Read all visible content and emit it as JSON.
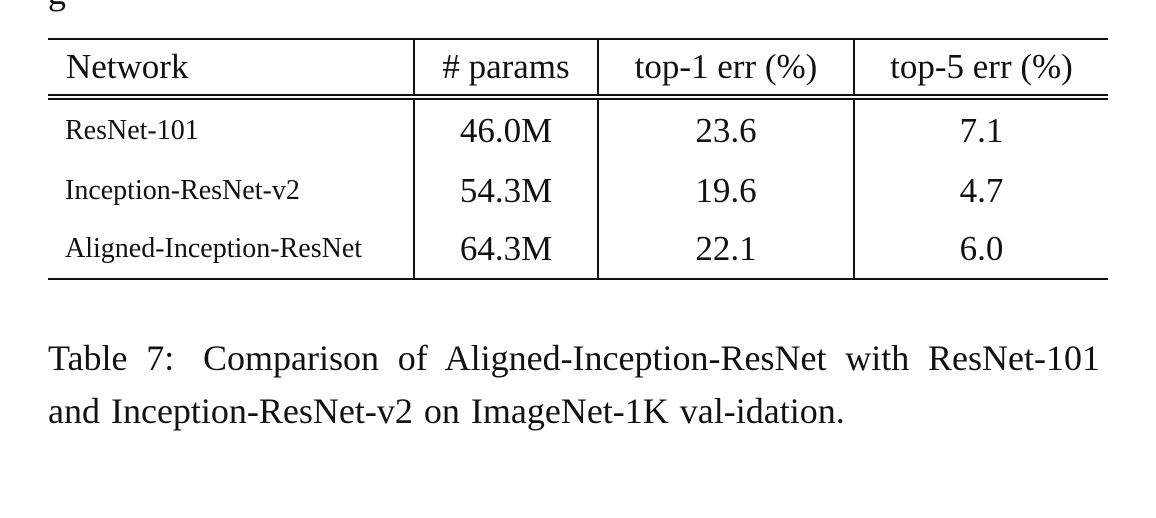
{
  "cutoff_text": "g",
  "table": {
    "headers": [
      "Network",
      "# params",
      "top-1 err (%)",
      "top-5 err (%)"
    ],
    "rows": [
      [
        "ResNet-101",
        "46.0M",
        "23.6",
        "7.1"
      ],
      [
        "Inception-ResNet-v2",
        "54.3M",
        "19.6",
        "4.7"
      ],
      [
        "Aligned-Inception-ResNet",
        "64.3M",
        "22.1",
        "6.0"
      ]
    ]
  },
  "caption": {
    "label": "Table 7:",
    "text": "Comparison of Aligned-Inception-ResNet with ResNet-101 and Inception-ResNet-v2 on ImageNet-1K val-idation."
  }
}
